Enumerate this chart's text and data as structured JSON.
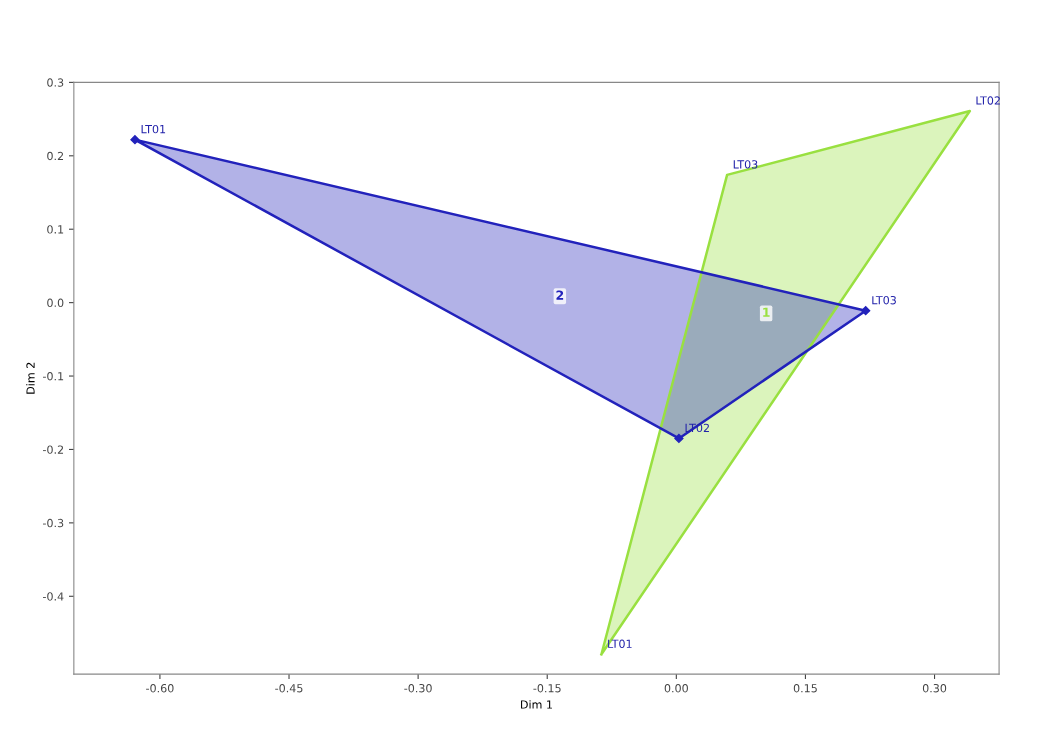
{
  "chart_data": {
    "type": "area",
    "xlabel": "Dim 1",
    "ylabel": "Dim 2",
    "xlim": [
      -0.7,
      0.375
    ],
    "ylim": [
      -0.506,
      0.3
    ],
    "xticks": [
      {
        "value": -0.6,
        "label": "-0.60"
      },
      {
        "value": -0.45,
        "label": "-0.45"
      },
      {
        "value": -0.3,
        "label": "-0.30"
      },
      {
        "value": -0.15,
        "label": "-0.15"
      },
      {
        "value": 0,
        "label": "0.00"
      },
      {
        "value": 0.15,
        "label": "0.15"
      },
      {
        "value": 0.3,
        "label": "0.30"
      }
    ],
    "yticks": [
      {
        "value": -0.4,
        "label": "-0.4"
      },
      {
        "value": -0.3,
        "label": "-0.3"
      },
      {
        "value": -0.2,
        "label": "-0.2"
      },
      {
        "value": -0.1,
        "label": "-0.1"
      },
      {
        "value": 0,
        "label": "0.0"
      },
      {
        "value": 0.1,
        "label": "0.1"
      },
      {
        "value": 0.2,
        "label": "0.2"
      },
      {
        "value": 0.3,
        "label": "0.3"
      }
    ],
    "grid": false,
    "series": [
      {
        "name": "1",
        "color": "#99e040",
        "x": [
          -0.087,
          0.341,
          0.059
        ],
        "values": [
          -0.479,
          0.261,
          0.174
        ],
        "marker": "none"
      },
      {
        "name": "2",
        "color": "#2222bb",
        "x": [
          -0.629,
          0.003,
          0.22
        ],
        "values": [
          0.222,
          -0.185,
          -0.011
        ],
        "marker": "diamond"
      }
    ],
    "annotations": [
      {
        "text": "LT01",
        "x": -0.087,
        "y": -0.479
      },
      {
        "text": "LT02",
        "x": 0.341,
        "y": 0.261
      },
      {
        "text": "LT03",
        "x": 0.059,
        "y": 0.174
      },
      {
        "text": "LT01",
        "x": -0.629,
        "y": 0.222
      },
      {
        "text": "LT02",
        "x": 0.003,
        "y": -0.185
      },
      {
        "text": "LT03",
        "x": 0.22,
        "y": -0.011
      }
    ]
  }
}
